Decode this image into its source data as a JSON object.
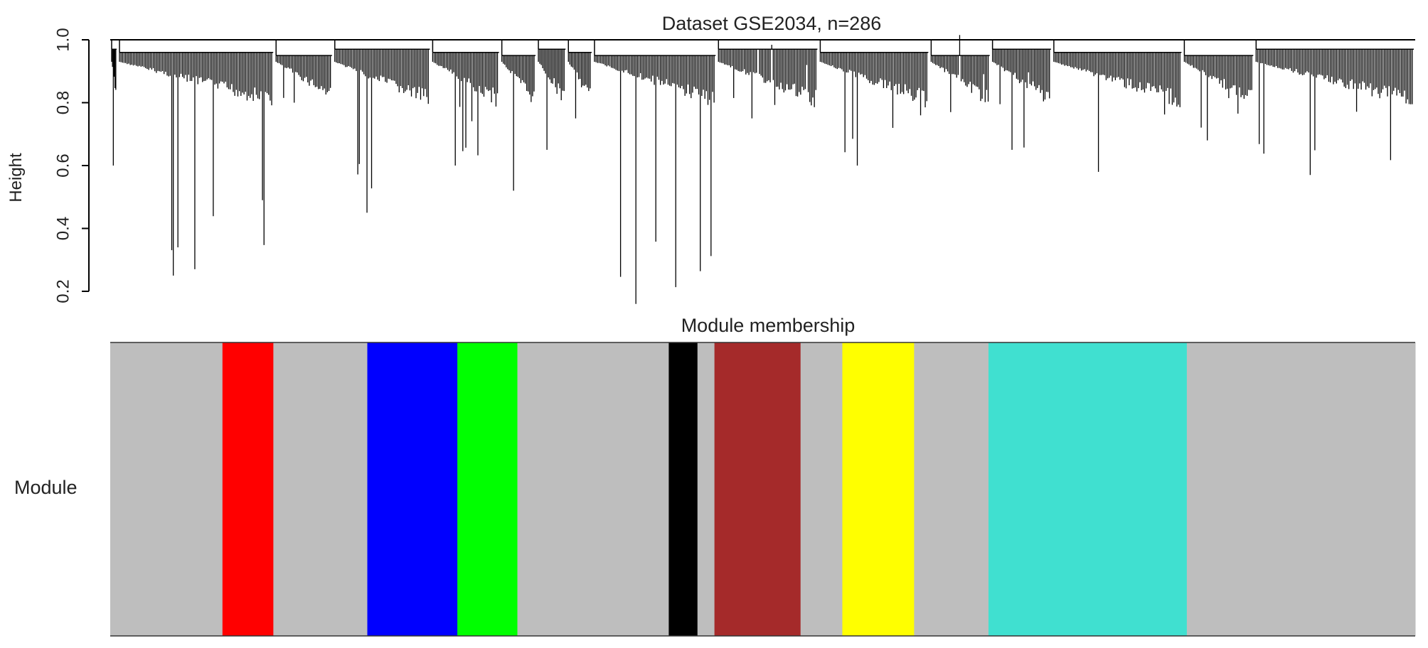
{
  "chart_data": [
    {
      "type": "dendrogram",
      "title": "Dataset GSE2034, n=286",
      "ylabel": "Height",
      "ylim": [
        0.2,
        1.0
      ],
      "yticks": [
        "0.2",
        "0.4",
        "0.6",
        "0.8",
        "1.0"
      ],
      "grid": false,
      "root_height": 1.0,
      "branches": [
        {
          "x": 0.0,
          "width": 0.006,
          "min_height": 0.6
        },
        {
          "x": 0.006,
          "width": 0.12,
          "min_height": 0.25
        },
        {
          "x": 0.126,
          "width": 0.045,
          "min_height": 0.8
        },
        {
          "x": 0.171,
          "width": 0.075,
          "min_height": 0.45
        },
        {
          "x": 0.246,
          "width": 0.053,
          "min_height": 0.6
        },
        {
          "x": 0.299,
          "width": 0.028,
          "min_height": 0.52
        },
        {
          "x": 0.327,
          "width": 0.023,
          "min_height": 0.65
        },
        {
          "x": 0.35,
          "width": 0.02,
          "min_height": 0.75
        },
        {
          "x": 0.37,
          "width": 0.095,
          "min_height": 0.16
        },
        {
          "x": 0.465,
          "width": 0.078,
          "min_height": 0.75
        },
        {
          "x": 0.543,
          "width": 0.085,
          "min_height": 0.6
        },
        {
          "x": 0.628,
          "width": 0.047,
          "min_height": 0.77
        },
        {
          "x": 0.675,
          "width": 0.047,
          "min_height": 0.65
        },
        {
          "x": 0.722,
          "width": 0.1,
          "min_height": 0.58
        },
        {
          "x": 0.822,
          "width": 0.055,
          "min_height": 0.68
        },
        {
          "x": 0.877,
          "width": 0.123,
          "min_height": 0.57
        }
      ]
    },
    {
      "type": "module-color-bar",
      "title": "Module membership",
      "row_label": "Module",
      "segments": [
        {
          "start": 0.0,
          "end": 0.086,
          "color": "#bebebe"
        },
        {
          "start": 0.086,
          "end": 0.125,
          "color": "#ff0000"
        },
        {
          "start": 0.125,
          "end": 0.197,
          "color": "#bebebe"
        },
        {
          "start": 0.197,
          "end": 0.266,
          "color": "#0000ff"
        },
        {
          "start": 0.266,
          "end": 0.312,
          "color": "#00ff00"
        },
        {
          "start": 0.312,
          "end": 0.428,
          "color": "#bebebe"
        },
        {
          "start": 0.428,
          "end": 0.45,
          "color": "#000000"
        },
        {
          "start": 0.45,
          "end": 0.463,
          "color": "#bebebe"
        },
        {
          "start": 0.463,
          "end": 0.529,
          "color": "#a52a2a"
        },
        {
          "start": 0.529,
          "end": 0.561,
          "color": "#bebebe"
        },
        {
          "start": 0.561,
          "end": 0.616,
          "color": "#ffff00"
        },
        {
          "start": 0.616,
          "end": 0.673,
          "color": "#bebebe"
        },
        {
          "start": 0.673,
          "end": 0.825,
          "color": "#40e0d0"
        },
        {
          "start": 0.825,
          "end": 1.0,
          "color": "#bebebe"
        }
      ]
    }
  ]
}
